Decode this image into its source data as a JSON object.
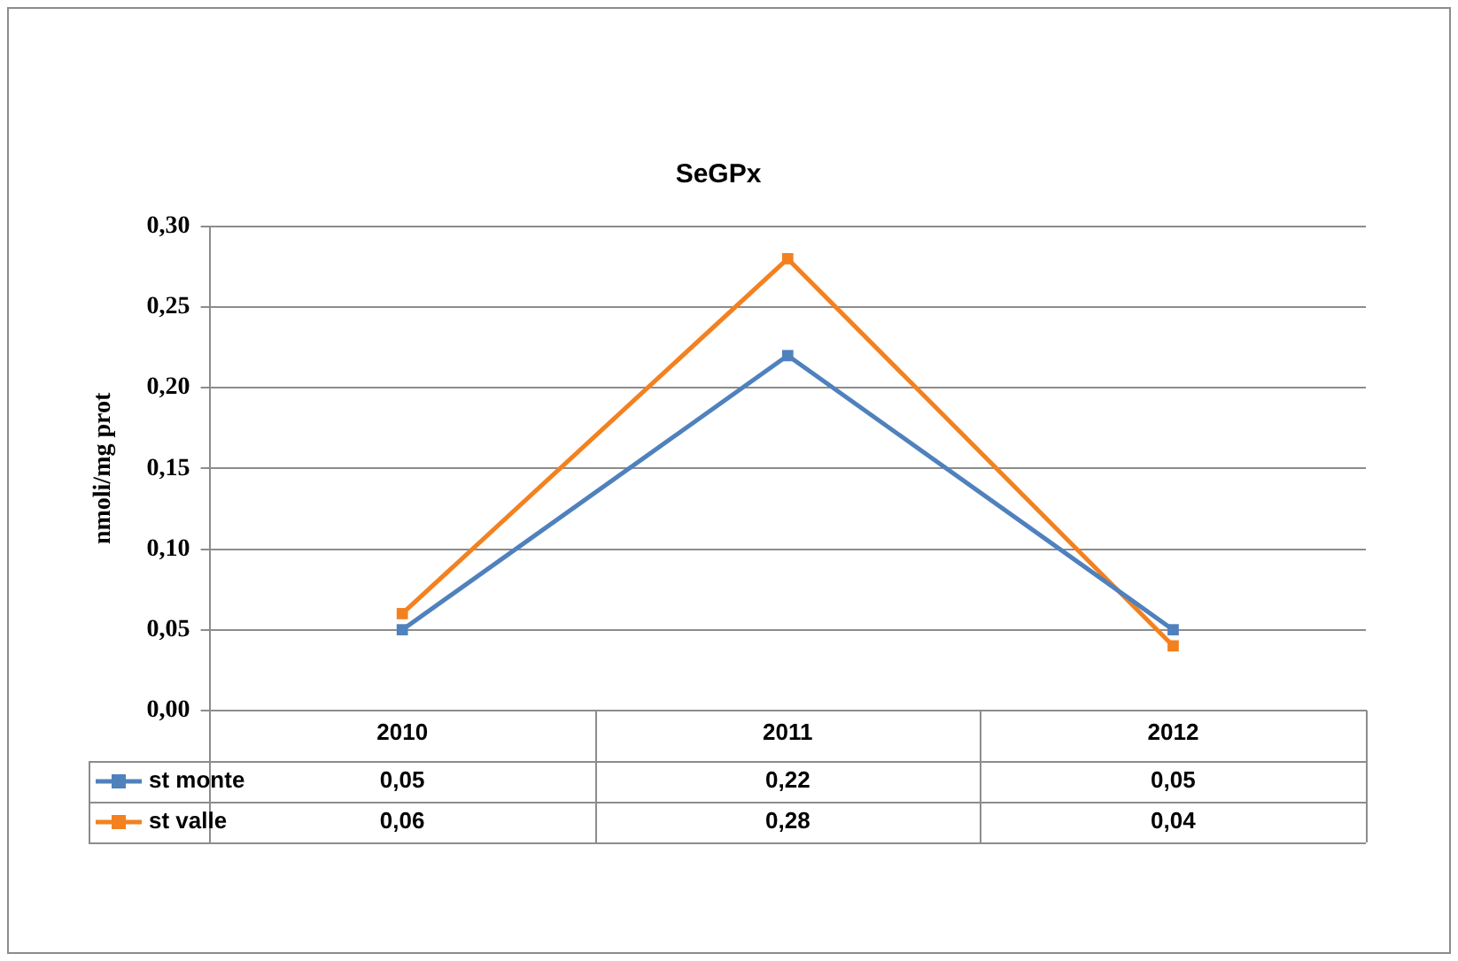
{
  "chart_data": {
    "type": "line",
    "title": "SeGPx",
    "ylabel": "nmoli/mg prot",
    "categories": [
      "2010",
      "2011",
      "2012"
    ],
    "series": [
      {
        "name": "st monte",
        "color": "#4f81bd",
        "values": [
          0.05,
          0.22,
          0.05
        ],
        "value_labels": [
          "0,05",
          "0,22",
          "0,05"
        ]
      },
      {
        "name": "st valle",
        "color": "#f38120",
        "values": [
          0.06,
          0.28,
          0.04
        ],
        "value_labels": [
          "0,06",
          "0,28",
          "0,04"
        ]
      }
    ],
    "ylim": [
      0,
      0.3
    ],
    "yticks": [
      {
        "value": 0,
        "label": "0,00"
      },
      {
        "value": 0.05,
        "label": "0,05"
      },
      {
        "value": 0.1,
        "label": "0,10"
      },
      {
        "value": 0.15,
        "label": "0,15"
      },
      {
        "value": 0.2,
        "label": "0,20"
      },
      {
        "value": 0.25,
        "label": "0,25"
      },
      {
        "value": 0.3,
        "label": "0,30"
      }
    ],
    "grid": "y",
    "legend": "bottom",
    "marker": "square",
    "line_style": "solid"
  }
}
